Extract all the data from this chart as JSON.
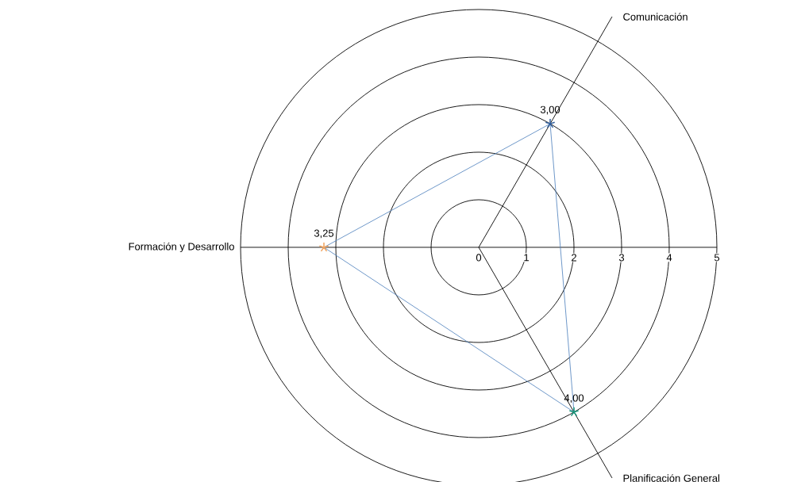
{
  "chart_data": {
    "type": "radar",
    "categories": [
      "Comunicación",
      "Planificación General",
      "Formación y Desarrollo"
    ],
    "series": [
      {
        "color": "#4a7ebb",
        "colors": [
          "#2e5c9a",
          "#16957a",
          "#f0a35e"
        ],
        "values": [
          3,
          4,
          3.25
        ],
        "value_labels": [
          "3,00",
          "4,00",
          "3,25"
        ]
      }
    ],
    "ylim": [
      0,
      5
    ],
    "yticks": [
      0,
      1,
      2,
      3,
      4,
      5
    ],
    "grid": true,
    "marker": "star"
  }
}
